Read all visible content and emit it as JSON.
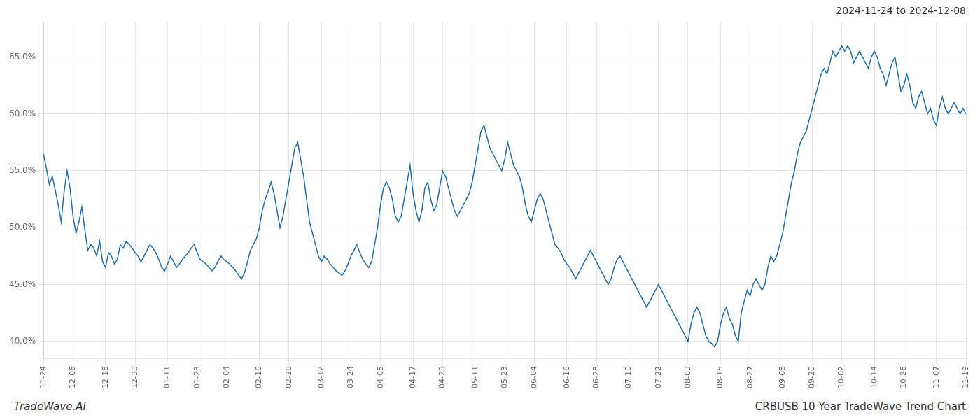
{
  "chart_data": {
    "type": "line",
    "title": "CRBUSB 10 Year TradeWave Trend Chart",
    "subtitle": "2024-11-24 to 2024-12-08",
    "annotations": [
      "TradeWave.AI"
    ],
    "color": "#1f6faf",
    "grid": true,
    "ylim": [
      38.5,
      68.0
    ],
    "yticks": [
      {
        "value": 40.0,
        "label": "40.0%"
      },
      {
        "value": 45.0,
        "label": "45.0%"
      },
      {
        "value": 50.0,
        "label": "50.0%"
      },
      {
        "value": 55.0,
        "label": "55.0%"
      },
      {
        "value": 60.0,
        "label": "60.0%"
      },
      {
        "value": 65.0,
        "label": "65.0%"
      }
    ],
    "categories": [
      "11-24",
      null,
      null,
      null,
      null,
      null,
      null,
      null,
      null,
      null,
      "12-06",
      null,
      null,
      null,
      null,
      null,
      null,
      null,
      null,
      null,
      null,
      "12-18",
      null,
      null,
      null,
      null,
      null,
      null,
      null,
      null,
      null,
      "12-30",
      null,
      null,
      null,
      null,
      null,
      null,
      null,
      null,
      null,
      null,
      "01-11",
      null,
      null,
      null,
      null,
      null,
      null,
      null,
      null,
      null,
      "01-23",
      null,
      null,
      null,
      null,
      null,
      null,
      null,
      null,
      null,
      "02-04",
      null,
      null,
      null,
      null,
      null,
      null,
      null,
      null,
      null,
      null,
      "02-16",
      null,
      null,
      null,
      null,
      null,
      null,
      null,
      null,
      null,
      "02-28",
      null,
      null,
      null,
      null,
      null,
      null,
      null,
      null,
      null,
      null,
      "03-12",
      null,
      null,
      null,
      null,
      null,
      null,
      null,
      null,
      null,
      "03-24",
      null,
      null,
      null,
      null,
      null,
      null,
      null,
      null,
      null,
      "04-05",
      null,
      null,
      null,
      null,
      null,
      null,
      null,
      null,
      null,
      null,
      "04-17",
      null,
      null,
      null,
      null,
      null,
      null,
      null,
      null,
      null,
      "04-29",
      null,
      null,
      null,
      null,
      null,
      null,
      null,
      null,
      null,
      null,
      "05-11",
      null,
      null,
      null,
      null,
      null,
      null,
      null,
      null,
      null,
      "05-23",
      null,
      null,
      null,
      null,
      null,
      null,
      null,
      null,
      null,
      "06-04",
      null,
      null,
      null,
      null,
      null,
      null,
      null,
      null,
      null,
      null,
      "06-16",
      null,
      null,
      null,
      null,
      null,
      null,
      null,
      null,
      null,
      "06-28",
      null,
      null,
      null,
      null,
      null,
      null,
      null,
      null,
      null,
      null,
      "07-10",
      null,
      null,
      null,
      null,
      null,
      null,
      null,
      null,
      null,
      "07-22",
      null,
      null,
      null,
      null,
      null,
      null,
      null,
      null,
      null,
      "08-03",
      null,
      null,
      null,
      null,
      null,
      null,
      null,
      null,
      null,
      null,
      "08-15",
      null,
      null,
      null,
      null,
      null,
      null,
      null,
      null,
      null,
      "08-27",
      null,
      null,
      null,
      null,
      null,
      null,
      null,
      null,
      null,
      null,
      "09-08",
      null,
      null,
      null,
      null,
      null,
      null,
      null,
      null,
      null,
      "09-20",
      null,
      null,
      null,
      null,
      null,
      null,
      null,
      null,
      null,
      "10-02",
      null,
      null,
      null,
      null,
      null,
      null,
      null,
      null,
      null,
      null,
      "10-14",
      null,
      null,
      null,
      null,
      null,
      null,
      null,
      null,
      null,
      "10-26",
      null,
      null,
      null,
      null,
      null,
      null,
      null,
      null,
      null,
      null,
      "11-07",
      null,
      null,
      null,
      null,
      null,
      null,
      null,
      null,
      null,
      "11-19"
    ],
    "values": [
      56.5,
      55.2,
      53.8,
      54.5,
      53.3,
      52.0,
      50.5,
      53.2,
      55.0,
      53.5,
      51.0,
      49.5,
      50.5,
      51.8,
      49.8,
      48.0,
      48.5,
      48.2,
      47.5,
      48.8,
      47.0,
      46.5,
      47.8,
      47.5,
      46.8,
      47.2,
      48.5,
      48.2,
      48.8,
      48.5,
      48.2,
      47.8,
      47.5,
      47.0,
      47.5,
      48.0,
      48.5,
      48.2,
      47.8,
      47.2,
      46.5,
      46.2,
      46.8,
      47.5,
      47.0,
      46.5,
      46.8,
      47.2,
      47.5,
      47.8,
      48.2,
      48.5,
      47.8,
      47.2,
      47.0,
      46.8,
      46.5,
      46.2,
      46.5,
      47.0,
      47.5,
      47.2,
      47.0,
      46.8,
      46.5,
      46.2,
      45.8,
      45.5,
      46.0,
      47.0,
      48.0,
      48.5,
      49.0,
      50.0,
      51.5,
      52.5,
      53.2,
      54.0,
      53.0,
      51.5,
      50.0,
      51.0,
      52.5,
      54.0,
      55.5,
      57.0,
      57.5,
      56.0,
      54.5,
      52.5,
      50.5,
      49.5,
      48.5,
      47.5,
      47.0,
      47.5,
      47.2,
      46.8,
      46.5,
      46.2,
      46.0,
      45.8,
      46.2,
      46.8,
      47.5,
      48.0,
      48.5,
      47.8,
      47.2,
      46.8,
      46.5,
      47.0,
      48.5,
      50.0,
      52.0,
      53.5,
      54.0,
      53.5,
      52.5,
      51.0,
      50.5,
      51.0,
      52.5,
      54.0,
      55.5,
      53.0,
      51.5,
      50.5,
      51.5,
      53.5,
      54.0,
      52.5,
      51.5,
      52.0,
      53.5,
      55.0,
      54.5,
      53.5,
      52.5,
      51.5,
      51.0,
      51.5,
      52.0,
      52.5,
      53.0,
      54.0,
      55.5,
      57.0,
      58.5,
      59.0,
      58.0,
      57.0,
      56.5,
      56.0,
      55.5,
      55.0,
      56.0,
      57.5,
      56.5,
      55.5,
      55.0,
      54.5,
      53.5,
      52.0,
      51.0,
      50.5,
      51.5,
      52.5,
      53.0,
      52.5,
      51.5,
      50.5,
      49.5,
      48.5,
      48.2,
      47.8,
      47.2,
      46.8,
      46.5,
      46.0,
      45.5,
      46.0,
      46.5,
      47.0,
      47.5,
      48.0,
      47.5,
      47.0,
      46.5,
      46.0,
      45.5,
      45.0,
      45.5,
      46.5,
      47.2,
      47.5,
      47.0,
      46.5,
      46.0,
      45.5,
      45.0,
      44.5,
      44.0,
      43.5,
      43.0,
      43.5,
      44.0,
      44.5,
      45.0,
      44.5,
      44.0,
      43.5,
      43.0,
      42.5,
      42.0,
      41.5,
      41.0,
      40.5,
      40.0,
      41.5,
      42.5,
      43.0,
      42.5,
      41.5,
      40.5,
      40.0,
      39.8,
      39.5,
      40.0,
      41.5,
      42.5,
      43.0,
      42.0,
      41.5,
      40.5,
      40.0,
      42.5,
      43.5,
      44.5,
      44.0,
      45.0,
      45.5,
      45.0,
      44.5,
      45.0,
      46.5,
      47.5,
      47.0,
      47.5,
      48.5,
      49.5,
      51.0,
      52.5,
      54.0,
      55.0,
      56.5,
      57.5,
      58.0,
      58.5,
      59.5,
      60.5,
      61.5,
      62.5,
      63.5,
      64.0,
      63.5,
      64.5,
      65.5,
      65.0,
      65.5,
      66.0,
      65.5,
      66.0,
      65.5,
      64.5,
      65.0,
      65.5,
      65.0,
      64.5,
      64.0,
      65.0,
      65.5,
      65.0,
      64.0,
      63.5,
      62.5,
      63.5,
      64.5,
      65.0,
      63.5,
      62.0,
      62.5,
      63.5,
      62.5,
      61.0,
      60.5,
      61.5,
      62.0,
      61.0,
      60.0,
      60.5,
      59.5,
      59.0,
      60.5,
      61.5,
      60.5,
      60.0,
      60.5,
      61.0,
      60.5,
      60.0,
      60.5,
      60.0
    ]
  }
}
